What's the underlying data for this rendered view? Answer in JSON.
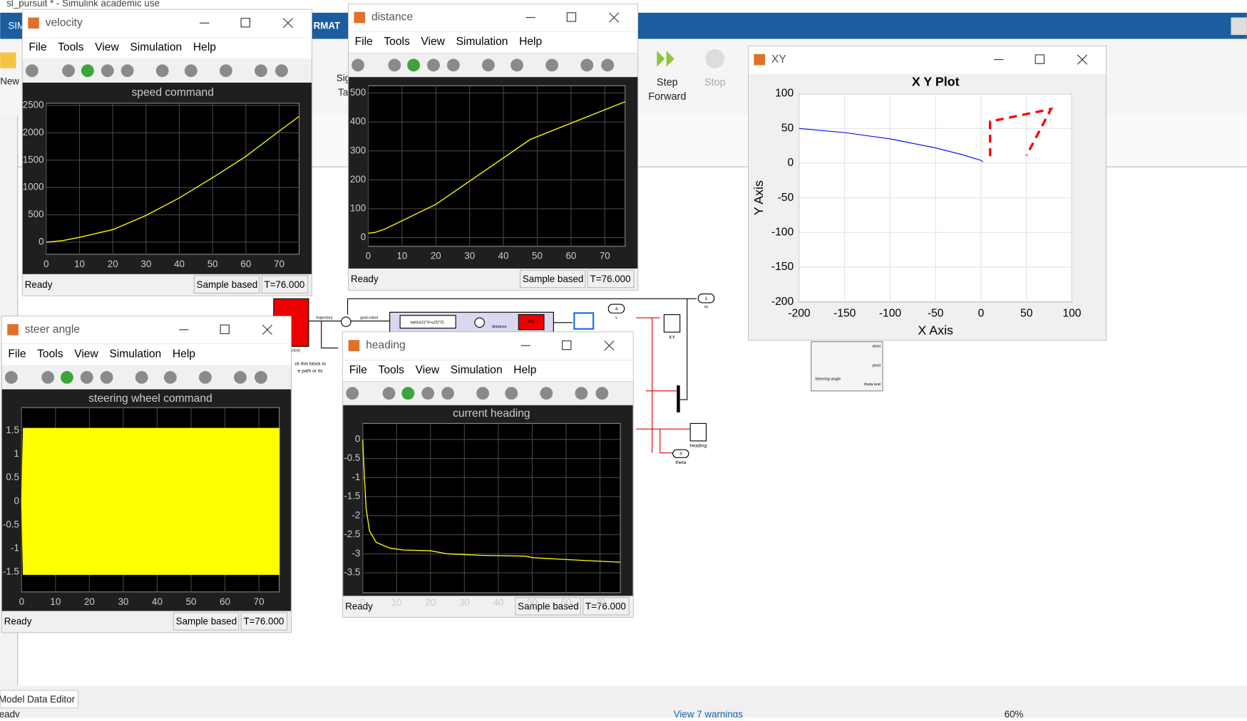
{
  "app": {
    "title": "sl_pursuit * - Simulink academic use",
    "tabs": [
      "SIM",
      "RMAT"
    ],
    "buttons": [
      "New",
      "Sig",
      "Ta",
      "Step",
      "Forward",
      "Stop"
    ]
  },
  "menu": [
    "File",
    "Tools",
    "View",
    "Simulation",
    "Help"
  ],
  "scopes": [
    {
      "window": "velocity",
      "title": "speed command",
      "type": "line",
      "color": "#ffff00",
      "x": [
        0,
        5,
        10,
        20,
        30,
        40,
        50,
        60,
        70,
        76
      ],
      "values": [
        0,
        30,
        90,
        230,
        490,
        810,
        1180,
        1570,
        2030,
        2300
      ],
      "xlim": [
        0,
        76
      ],
      "ylim": [
        -220,
        2540
      ],
      "xticks": [
        0,
        10,
        20,
        30,
        40,
        50,
        60,
        70
      ],
      "yticks": [
        0,
        500,
        1000,
        1500,
        2000,
        2500
      ],
      "status": [
        "Ready",
        "Sample based",
        "T=76.000"
      ]
    },
    {
      "window": "distance",
      "type": "line",
      "color": "#ffff00",
      "x": [
        0,
        2,
        5,
        20,
        48,
        76
      ],
      "values": [
        15,
        18,
        30,
        115,
        340,
        470
      ],
      "xlim": [
        0,
        76
      ],
      "ylim": [
        -30,
        525
      ],
      "xticks": [
        0,
        10,
        20,
        30,
        40,
        50,
        60,
        70
      ],
      "yticks": [
        0,
        100,
        200,
        300,
        400,
        500
      ],
      "status": [
        "Ready",
        "Sample based",
        "T=76.000"
      ]
    },
    {
      "window": "steer angle",
      "title": "steering wheel command",
      "type": "band",
      "color": "#ffff00",
      "x": [
        0,
        0.5,
        1,
        76
      ],
      "upper": [
        0,
        1.55,
        1.55,
        1.55
      ],
      "lower": [
        0,
        -1.55,
        -1.55,
        -1.55
      ],
      "xlim": [
        0,
        76
      ],
      "ylim": [
        -1.92,
        1.99
      ],
      "xticks": [
        0,
        10,
        20,
        30,
        40,
        50,
        60,
        70
      ],
      "yticks": [
        1.5,
        1,
        0.5,
        0,
        -0.5,
        -1,
        -1.5
      ],
      "status": [
        "Ready",
        "Sample based",
        "T=76.000"
      ]
    },
    {
      "window": "heading",
      "title": "current heading",
      "type": "line",
      "color": "#ffff00",
      "x": [
        0,
        0.5,
        1,
        2,
        4,
        8,
        12,
        20,
        25,
        35,
        48,
        50,
        60,
        76
      ],
      "values": [
        0,
        -1,
        -1.8,
        -2.4,
        -2.7,
        -2.85,
        -2.9,
        -2.92,
        -3,
        -3.04,
        -3.06,
        -3.1,
        -3.15,
        -3.22
      ],
      "xlim": [
        0,
        76
      ],
      "ylim": [
        -4.02,
        0.42
      ],
      "xticks": [
        0,
        10,
        20,
        30,
        40,
        50,
        60,
        70
      ],
      "yticks": [
        0,
        -0.5,
        -1,
        -1.5,
        -2,
        -2.5,
        -3,
        -3.5
      ],
      "status": [
        "Ready",
        "Sample based",
        "T=76.000"
      ]
    }
  ],
  "xy": {
    "window": "XY",
    "title": "X Y Plot",
    "xlabel": "X Axis",
    "ylabel": "Y Axis",
    "xlim": [
      -200,
      100
    ],
    "ylim": [
      -200,
      100
    ],
    "xticks": [
      -200,
      -150,
      -100,
      -50,
      0,
      50,
      100
    ],
    "yticks": [
      100,
      50,
      0,
      -50,
      -100,
      -150,
      -200
    ],
    "grid": true,
    "series": [
      {
        "color": "#0000ff",
        "dashed": false,
        "x": [
          -200,
          -150,
          -100,
          -50,
          -20,
          0,
          2
        ],
        "values": [
          50,
          44,
          35,
          22,
          12,
          4,
          1.5
        ]
      },
      {
        "color": "#ff0000",
        "dashed": true,
        "x": [
          10,
          10,
          77,
          50
        ],
        "values": [
          10,
          60,
          78,
          11
        ]
      }
    ]
  },
  "diagram": {
    "labels": [
      "trajectory",
      "goal-robot",
      "sqrt(u(1)^2+u(2)^2)",
      "distance",
      "PID",
      "4",
      "v",
      "1",
      "xy",
      "XY",
      "heading",
      "3",
      "theta",
      "ctory",
      "ck this block to",
      "e path or its",
      "xtest",
      "ytest",
      "theta test",
      "Steering angle"
    ]
  },
  "statusbar": {
    "editor": "Model Data Editor",
    "state": "Ready",
    "warnings": "View 7 warnings",
    "zoom": "60%"
  }
}
